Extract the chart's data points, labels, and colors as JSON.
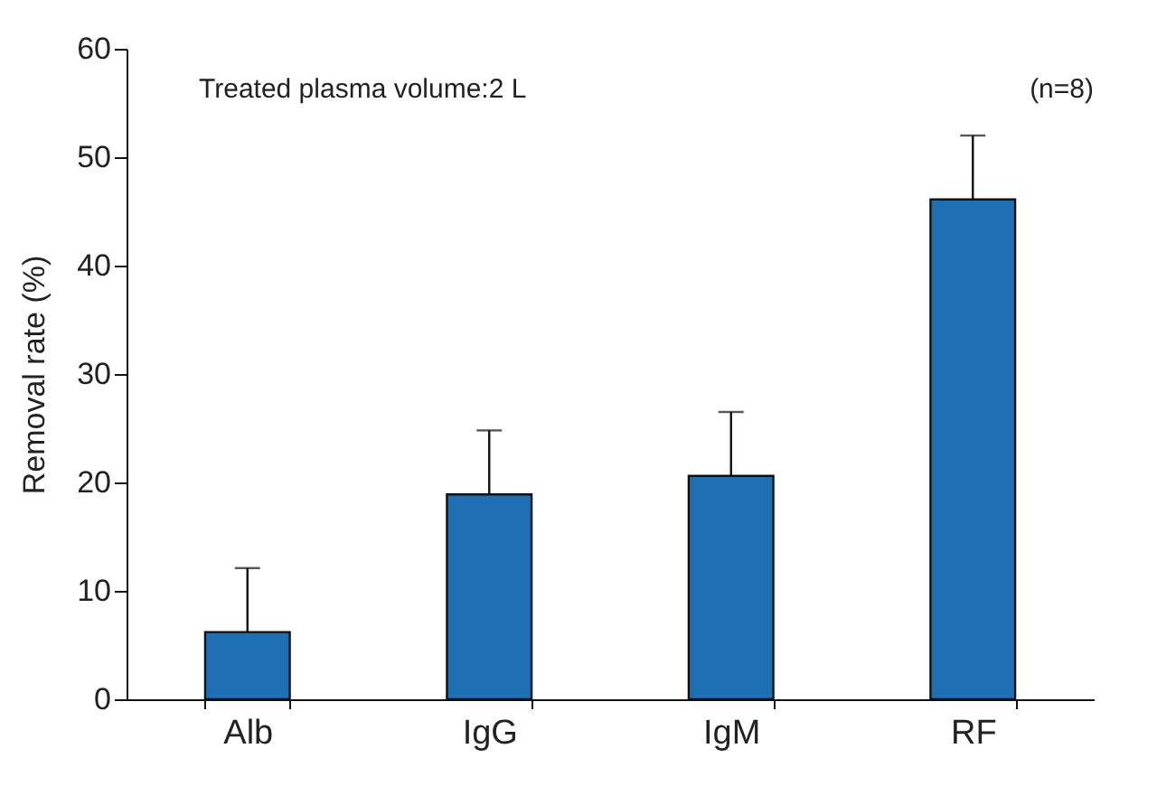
{
  "chart_data": {
    "type": "bar",
    "ylabel": "Removal rate (%)",
    "annotations": [
      "Treated plasma volume:2 L",
      "(n=8)"
    ],
    "categories": [
      "Alb",
      "IgG",
      "IgM",
      "RF"
    ],
    "values": [
      6.2,
      18.9,
      20.6,
      46.1
    ],
    "errors": [
      [
        6.2,
        12.1
      ],
      [
        18.9,
        24.8
      ],
      [
        20.6,
        26.5
      ],
      [
        46.1,
        52.0
      ]
    ],
    "color": "#1f6fb5",
    "ylim": [
      0,
      60
    ],
    "yticks": [
      0,
      10,
      20,
      30,
      40,
      50,
      60
    ],
    "grid": false
  }
}
